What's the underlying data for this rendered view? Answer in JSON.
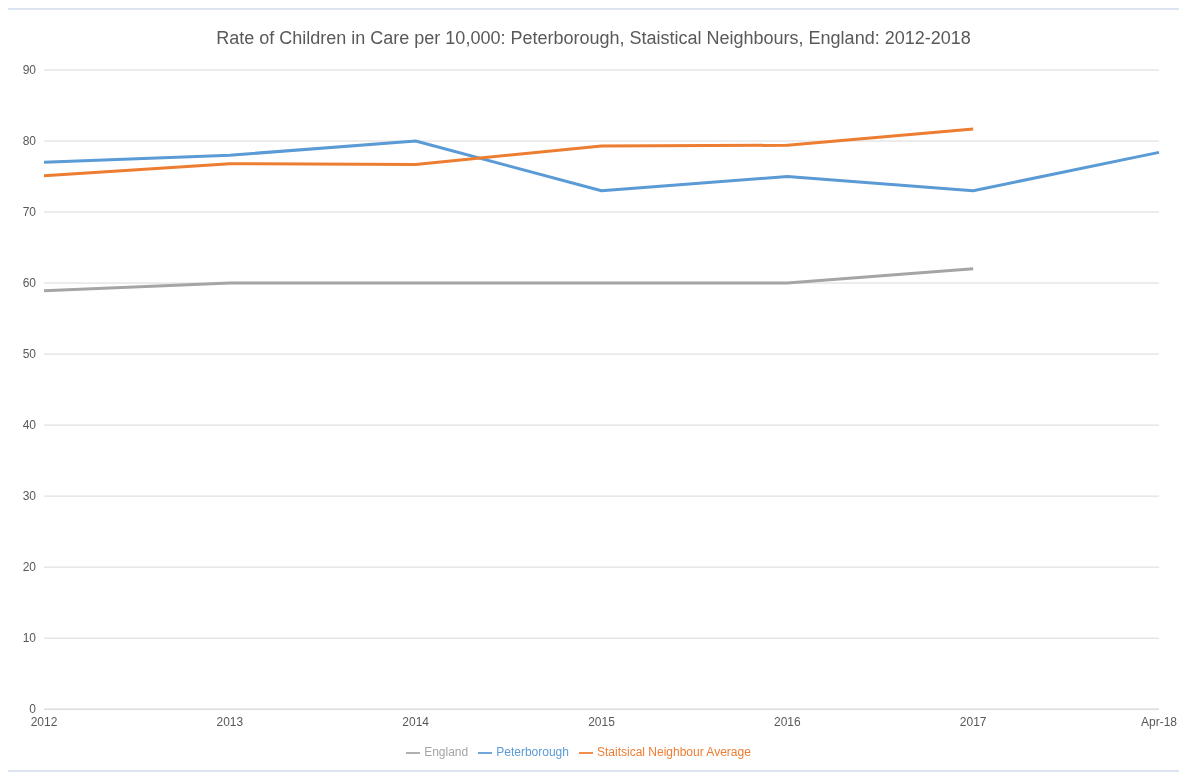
{
  "chart_data": {
    "type": "line",
    "title": "Rate of Children in Care per 10,000: Peterborough, Staistical Neighbours, England: 2012-2018",
    "categories": [
      "2012",
      "2013",
      "2014",
      "2015",
      "2016",
      "2017",
      "Apr-18"
    ],
    "series": [
      {
        "name": "Peterborough",
        "color": "#5b9bd5",
        "values": [
          77,
          78,
          80,
          73,
          75,
          73,
          78.4
        ]
      },
      {
        "name": "Staitsical Neighbour Average",
        "color": "#ed7d31",
        "values": [
          75.1,
          76.8,
          76.7,
          79.3,
          79.4,
          81.7,
          null
        ]
      },
      {
        "name": "England",
        "color": "#a5a5a5",
        "values": [
          58.9,
          60,
          60,
          60,
          60,
          62,
          null
        ]
      }
    ],
    "ylim": [
      0,
      90
    ],
    "yticks": [
      0,
      10,
      20,
      30,
      40,
      50,
      60,
      70,
      80,
      90
    ],
    "grid": "y",
    "legend": "bottom",
    "marker": "none",
    "line_style": "solid"
  }
}
